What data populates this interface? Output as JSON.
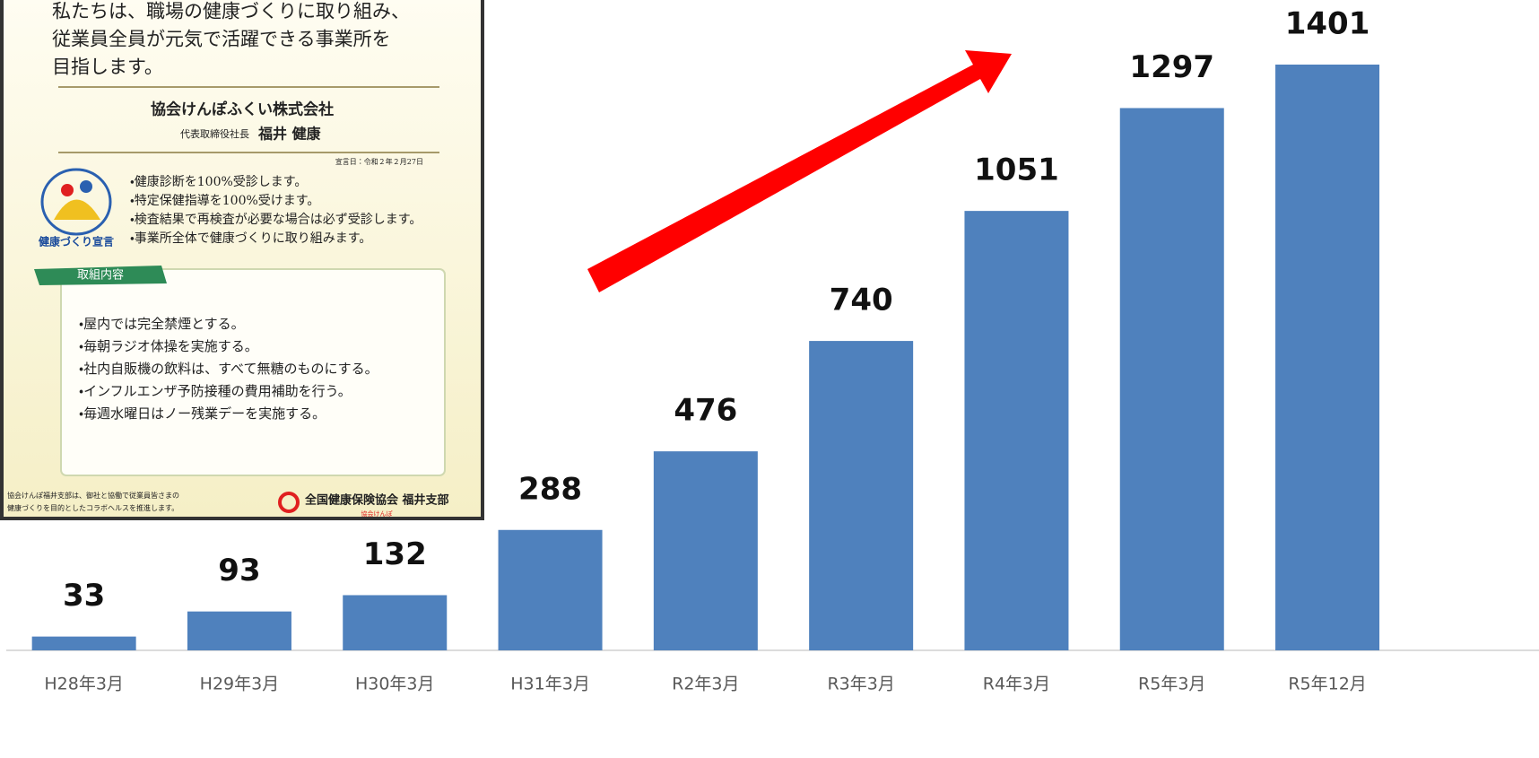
{
  "chart_data": {
    "type": "bar",
    "categories": [
      "H28年3月",
      "H29年3月",
      "H30年3月",
      "H31年3月",
      "R2年3月",
      "R3年3月",
      "R4年3月",
      "R5年3月",
      "R5年12月"
    ],
    "values": [
      33,
      93,
      132,
      288,
      476,
      740,
      1051,
      1297,
      1401
    ],
    "color": "#4f81bd"
  },
  "declaration": {
    "pledge": [
      "私たちは、職場の健康づくりに取り組み、",
      "従業員全員が元気で活躍できる事業所を",
      "目指します。"
    ],
    "company": "協会けんぽふくい株式会社",
    "representative_title": "代表取締役社長",
    "representative_name": "福井 健康",
    "date": "宣言日：令和２年２月27日",
    "logo_label": "健康づくり宣言",
    "commitments": [
      "・健康診断を100%受診します。",
      "・特定保健指導を100%受けます。",
      "・検査結果で再検査が必要な場合は必ず受診します。",
      "・事業所全体で健康づくりに取り組みます。"
    ],
    "actions_heading": "取組内容",
    "actions": [
      "・屋内では完全禁煙とする。",
      "・毎朝ラジオ体操を実施する。",
      "・社内自販機の飲料は、すべて無糖のものにする。",
      "・インフルエンザ予防接種の費用補助を行う。",
      "・毎週水曜日はノー残業デーを実施する。"
    ],
    "footer_note": [
      "協会けんぽ福井支部は、御社と協働で従業員皆さまの",
      "健康づくりを目的としたコラボヘルスを推進します。"
    ],
    "organization": "全国健康保険協会 福井支部",
    "organization_short": "協会けんぽ"
  }
}
